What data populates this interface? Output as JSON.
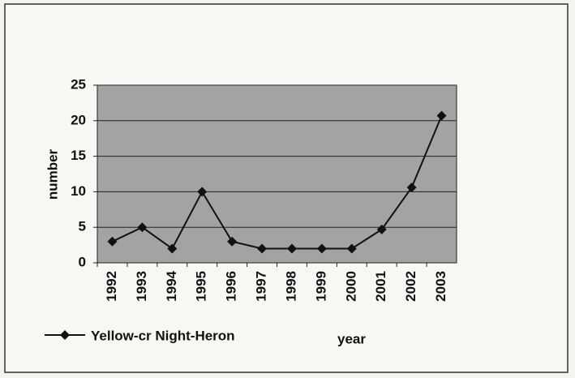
{
  "chart_data": {
    "type": "line",
    "categories": [
      "1992",
      "1993",
      "1994",
      "1995",
      "1996",
      "1997",
      "1998",
      "1999",
      "2000",
      "2001",
      "2002",
      "2003"
    ],
    "series": [
      {
        "name": "Yellow-cr Night-Heron",
        "color": "#111111",
        "values": [
          3,
          5,
          2,
          10,
          3,
          2,
          2,
          2,
          2,
          4.7,
          10.6,
          20.7
        ]
      }
    ],
    "x_label": "year",
    "y_label": "number",
    "ylim": [
      0,
      25
    ],
    "yticks": [
      0,
      5,
      10,
      15,
      20,
      25
    ],
    "grid": true,
    "plot_background": "#a3a3a3"
  }
}
